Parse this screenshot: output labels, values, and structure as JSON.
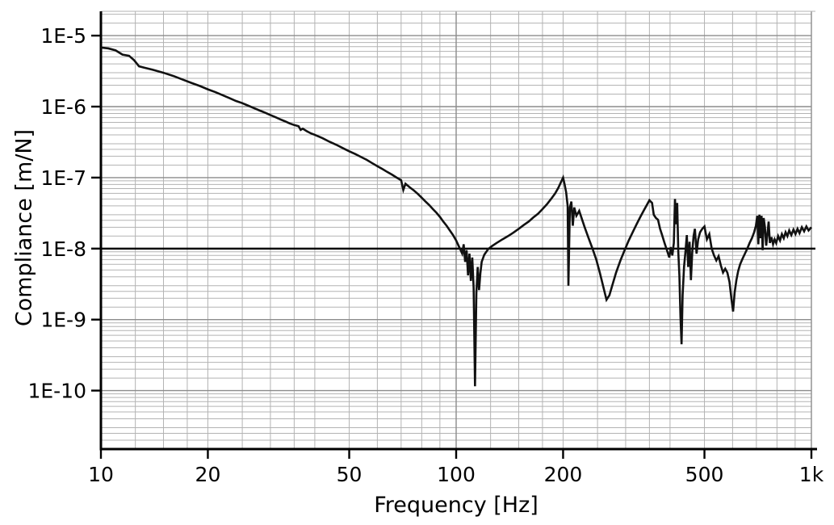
{
  "chart_data": {
    "type": "line",
    "title": "",
    "xlabel": "Frequency [Hz]",
    "ylabel": "Compliance [m/N]",
    "x_scale": "log",
    "y_scale": "log",
    "xlim": [
      10,
      1000
    ],
    "ylim": [
      1.5e-11,
      2.2e-05
    ],
    "x_ticks": [
      {
        "value": 10,
        "label": "10"
      },
      {
        "value": 20,
        "label": "20"
      },
      {
        "value": 50,
        "label": "50"
      },
      {
        "value": 100,
        "label": "100"
      },
      {
        "value": 200,
        "label": "200"
      },
      {
        "value": 500,
        "label": "500"
      },
      {
        "value": 1000,
        "label": "1k"
      }
    ],
    "y_ticks": [
      {
        "value": 1e-05,
        "label": "1E-5"
      },
      {
        "value": 1e-06,
        "label": "1E-6"
      },
      {
        "value": 1e-07,
        "label": "1E-7"
      },
      {
        "value": 1e-08,
        "label": "1E-8"
      },
      {
        "value": 1e-09,
        "label": "1E-9"
      },
      {
        "value": 1e-10,
        "label": "1E-10"
      }
    ],
    "reference_line": {
      "y": 1e-08,
      "color": "#000000",
      "width": 2.4
    },
    "grid": {
      "minor_color": "#b3b3b3",
      "major_color": "#8c8c8c",
      "x_minor_multiples": [
        1.25,
        1.5,
        1.75,
        2,
        2.5,
        3,
        3.5,
        4,
        5,
        6,
        7,
        8,
        9
      ],
      "y_minor_multiples": [
        1.5,
        2,
        2.5,
        3,
        4,
        5,
        6,
        7,
        8,
        9
      ]
    },
    "line_color": "#111111",
    "line_width": 2.6,
    "series": [
      {
        "name": "compliance",
        "points": [
          [
            10,
            6.8e-06
          ],
          [
            10.5,
            6.6e-06
          ],
          [
            11,
            6.2e-06
          ],
          [
            11.5,
            5.4e-06
          ],
          [
            12,
            5.2e-06
          ],
          [
            12.4,
            4.5e-06
          ],
          [
            12.8,
            3.7e-06
          ],
          [
            13.2,
            3.55e-06
          ],
          [
            14,
            3.3e-06
          ],
          [
            15,
            3e-06
          ],
          [
            16,
            2.7e-06
          ],
          [
            17,
            2.4e-06
          ],
          [
            18,
            2.15e-06
          ],
          [
            19,
            1.95e-06
          ],
          [
            20,
            1.75e-06
          ],
          [
            21,
            1.6e-06
          ],
          [
            22,
            1.45e-06
          ],
          [
            23,
            1.32e-06
          ],
          [
            24,
            1.2e-06
          ],
          [
            25,
            1.12e-06
          ],
          [
            26,
            1.03e-06
          ],
          [
            27,
            9.5e-07
          ],
          [
            28,
            8.8e-07
          ],
          [
            29,
            8.2e-07
          ],
          [
            30,
            7.6e-07
          ],
          [
            31,
            7.1e-07
          ],
          [
            32,
            6.6e-07
          ],
          [
            33,
            6.2e-07
          ],
          [
            34,
            5.8e-07
          ],
          [
            35,
            5.5e-07
          ],
          [
            36,
            5.3e-07
          ],
          [
            36.5,
            4.7e-07
          ],
          [
            37,
            4.9e-07
          ],
          [
            38,
            4.5e-07
          ],
          [
            39,
            4.2e-07
          ],
          [
            40,
            4e-07
          ],
          [
            42,
            3.6e-07
          ],
          [
            44,
            3.2e-07
          ],
          [
            46,
            2.9e-07
          ],
          [
            48,
            2.6e-07
          ],
          [
            50,
            2.35e-07
          ],
          [
            52,
            2.15e-07
          ],
          [
            54,
            1.95e-07
          ],
          [
            56,
            1.78e-07
          ],
          [
            58,
            1.6e-07
          ],
          [
            60,
            1.45e-07
          ],
          [
            62,
            1.32e-07
          ],
          [
            64,
            1.2e-07
          ],
          [
            66,
            1.1e-07
          ],
          [
            68,
            1e-07
          ],
          [
            70,
            9.2e-08
          ],
          [
            71,
            6.7e-08
          ],
          [
            72,
            8.2e-08
          ],
          [
            74,
            7.3e-08
          ],
          [
            76,
            6.6e-08
          ],
          [
            78,
            5.9e-08
          ],
          [
            80,
            5.2e-08
          ],
          [
            82,
            4.6e-08
          ],
          [
            84,
            4.1e-08
          ],
          [
            86,
            3.6e-08
          ],
          [
            88,
            3.2e-08
          ],
          [
            90,
            2.8e-08
          ],
          [
            92,
            2.4e-08
          ],
          [
            94,
            2.1e-08
          ],
          [
            96,
            1.8e-08
          ],
          [
            98,
            1.55e-08
          ],
          [
            100,
            1.3e-08
          ],
          [
            102,
            1.05e-08
          ],
          [
            104,
            8.5e-09
          ],
          [
            105,
            1.15e-08
          ],
          [
            106,
            6.5e-09
          ],
          [
            107,
            9.5e-09
          ],
          [
            108,
            4.2e-09
          ],
          [
            109,
            8.5e-09
          ],
          [
            110,
            3.5e-09
          ],
          [
            111,
            7.5e-09
          ],
          [
            112,
            2.8e-09
          ],
          [
            113,
            1.15e-10
          ],
          [
            114,
            2.4e-09
          ],
          [
            115,
            5.5e-09
          ],
          [
            116,
            2.6e-09
          ],
          [
            117,
            4.5e-09
          ],
          [
            118,
            6.5e-09
          ],
          [
            120,
            8.2e-09
          ],
          [
            123,
            9.8e-09
          ],
          [
            126,
            1.08e-08
          ],
          [
            130,
            1.2e-08
          ],
          [
            135,
            1.35e-08
          ],
          [
            140,
            1.5e-08
          ],
          [
            145,
            1.68e-08
          ],
          [
            150,
            1.9e-08
          ],
          [
            155,
            2.15e-08
          ],
          [
            160,
            2.4e-08
          ],
          [
            165,
            2.75e-08
          ],
          [
            170,
            3.1e-08
          ],
          [
            175,
            3.6e-08
          ],
          [
            180,
            4.2e-08
          ],
          [
            185,
            5e-08
          ],
          [
            190,
            6e-08
          ],
          [
            194,
            7.2e-08
          ],
          [
            197,
            8.5e-08
          ],
          [
            200,
            1e-07
          ],
          [
            202,
            8e-08
          ],
          [
            204,
            6.2e-08
          ],
          [
            206,
            4e-08
          ],
          [
            207,
            3e-09
          ],
          [
            209,
            3.8e-08
          ],
          [
            211,
            4.6e-08
          ],
          [
            213,
            2.1e-08
          ],
          [
            215,
            3.8e-08
          ],
          [
            218,
            2.9e-08
          ],
          [
            222,
            3.4e-08
          ],
          [
            226,
            2.6e-08
          ],
          [
            230,
            2e-08
          ],
          [
            236,
            1.4e-08
          ],
          [
            242,
            1e-08
          ],
          [
            248,
            7e-09
          ],
          [
            254,
            4.5e-09
          ],
          [
            260,
            2.8e-09
          ],
          [
            265,
            1.9e-09
          ],
          [
            270,
            2.2e-09
          ],
          [
            276,
            3.2e-09
          ],
          [
            282,
            4.6e-09
          ],
          [
            290,
            6.8e-09
          ],
          [
            298,
            9.5e-09
          ],
          [
            306,
            1.3e-08
          ],
          [
            314,
            1.7e-08
          ],
          [
            322,
            2.2e-08
          ],
          [
            330,
            2.8e-08
          ],
          [
            338,
            3.5e-08
          ],
          [
            344,
            4.1e-08
          ],
          [
            350,
            4.8e-08
          ],
          [
            356,
            4.4e-08
          ],
          [
            360,
            3e-08
          ],
          [
            365,
            2.7e-08
          ],
          [
            370,
            2.55e-08
          ],
          [
            375,
            1.9e-08
          ],
          [
            380,
            1.55e-08
          ],
          [
            386,
            1.2e-08
          ],
          [
            392,
            9.5e-09
          ],
          [
            398,
            7.5e-09
          ],
          [
            402,
            1.05e-08
          ],
          [
            406,
            8e-09
          ],
          [
            410,
            1.2e-08
          ],
          [
            413,
            5e-08
          ],
          [
            416,
            2.2e-08
          ],
          [
            419,
            4.4e-08
          ],
          [
            422,
            9e-09
          ],
          [
            425,
            4.2e-09
          ],
          [
            428,
            1.1e-09
          ],
          [
            431,
            4.5e-10
          ],
          [
            434,
            2.2e-09
          ],
          [
            438,
            5.5e-09
          ],
          [
            442,
            9e-09
          ],
          [
            446,
            1.55e-08
          ],
          [
            450,
            5.5e-09
          ],
          [
            454,
            1.25e-08
          ],
          [
            458,
            3.6e-09
          ],
          [
            462,
            9e-09
          ],
          [
            466,
            1.5e-08
          ],
          [
            470,
            1.9e-08
          ],
          [
            475,
            8.5e-09
          ],
          [
            480,
            1.35e-08
          ],
          [
            486,
            1.7e-08
          ],
          [
            493,
            1.9e-08
          ],
          [
            500,
            2.05e-08
          ],
          [
            508,
            1.35e-08
          ],
          [
            516,
            1.6e-08
          ],
          [
            524,
            1e-08
          ],
          [
            532,
            8e-09
          ],
          [
            540,
            6.8e-09
          ],
          [
            548,
            7.8e-09
          ],
          [
            556,
            5.8e-09
          ],
          [
            564,
            4.6e-09
          ],
          [
            572,
            5.2e-09
          ],
          [
            580,
            4.6e-09
          ],
          [
            588,
            3.4e-09
          ],
          [
            596,
            1.9e-09
          ],
          [
            602,
            1.3e-09
          ],
          [
            608,
            2.4e-09
          ],
          [
            615,
            3.6e-09
          ],
          [
            622,
            4.8e-09
          ],
          [
            630,
            6e-09
          ],
          [
            640,
            7.2e-09
          ],
          [
            650,
            8.5e-09
          ],
          [
            660,
            1e-08
          ],
          [
            670,
            1.2e-08
          ],
          [
            680,
            1.4e-08
          ],
          [
            690,
            1.7e-08
          ],
          [
            698,
            2.1e-08
          ],
          [
            704,
            2.9e-08
          ],
          [
            709,
            1.15e-08
          ],
          [
            714,
            3e-08
          ],
          [
            719,
            1.4e-08
          ],
          [
            724,
            2.9e-08
          ],
          [
            729,
            9.5e-09
          ],
          [
            734,
            2.7e-08
          ],
          [
            740,
            2e-08
          ],
          [
            746,
            1.1e-08
          ],
          [
            752,
            1.6e-08
          ],
          [
            758,
            2.4e-08
          ],
          [
            764,
            1.2e-08
          ],
          [
            772,
            1.45e-08
          ],
          [
            780,
            1.15e-08
          ],
          [
            788,
            1.35e-08
          ],
          [
            796,
            1.2e-08
          ],
          [
            806,
            1.5e-08
          ],
          [
            816,
            1.3e-08
          ],
          [
            826,
            1.6e-08
          ],
          [
            836,
            1.4e-08
          ],
          [
            846,
            1.7e-08
          ],
          [
            856,
            1.5e-08
          ],
          [
            866,
            1.8e-08
          ],
          [
            878,
            1.55e-08
          ],
          [
            890,
            1.85e-08
          ],
          [
            902,
            1.6e-08
          ],
          [
            914,
            1.9e-08
          ],
          [
            926,
            1.65e-08
          ],
          [
            940,
            2e-08
          ],
          [
            954,
            1.75e-08
          ],
          [
            968,
            2.05e-08
          ],
          [
            982,
            1.8e-08
          ],
          [
            1000,
            2e-08
          ]
        ]
      }
    ]
  }
}
